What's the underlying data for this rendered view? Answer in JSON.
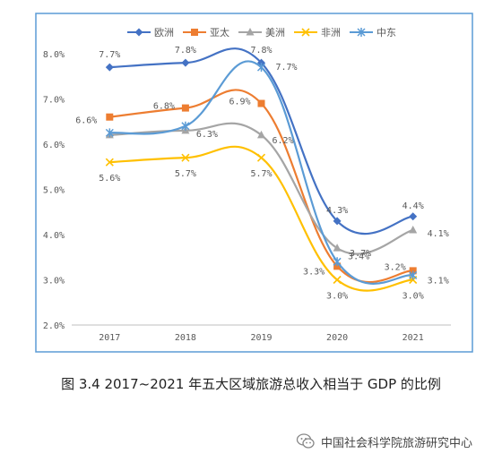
{
  "chart_data": {
    "type": "line",
    "categories": [
      "2017",
      "2018",
      "2019",
      "2020",
      "2021"
    ],
    "ylim": [
      2.0,
      8.0
    ],
    "yticks": [
      "2.0%",
      "3.0%",
      "4.0%",
      "5.0%",
      "6.0%",
      "7.0%",
      "8.0%"
    ],
    "grid": false,
    "legend_position": "top",
    "series": [
      {
        "name": "欧洲",
        "color": "#4472C4",
        "marker": "diamond",
        "values": [
          7.7,
          7.8,
          7.8,
          4.3,
          4.4
        ],
        "labels": [
          "7.7%",
          "7.8%",
          "7.8%",
          "4.3%",
          "4.4%"
        ]
      },
      {
        "name": "亚太",
        "color": "#ED7D31",
        "marker": "square",
        "values": [
          6.6,
          6.8,
          6.9,
          3.3,
          3.2
        ],
        "labels": [
          "6.6%",
          "6.8%",
          "6.9%",
          "3.3%",
          "3.2%"
        ]
      },
      {
        "name": "美洲",
        "color": "#A5A5A5",
        "marker": "triangle",
        "values": [
          6.2,
          6.3,
          6.2,
          3.7,
          4.1
        ],
        "labels": [
          "",
          "6.3%",
          "6.2%",
          "3.7%",
          "4.1%"
        ]
      },
      {
        "name": "非洲",
        "color": "#FFC000",
        "marker": "x",
        "values": [
          5.6,
          5.7,
          5.7,
          3.0,
          3.0
        ],
        "labels": [
          "5.6%",
          "5.7%",
          "5.7%",
          "3.0%",
          "3.0%"
        ]
      },
      {
        "name": "中东",
        "color": "#5B9BD5",
        "marker": "star",
        "values": [
          6.25,
          6.4,
          7.7,
          3.4,
          3.1
        ],
        "labels": [
          "",
          "",
          "7.7%",
          "3.4%",
          "3.1%"
        ]
      }
    ]
  },
  "caption": "图 3.4   2017~2021 年五大区域旅游总收入相当于 GDP 的比例",
  "footer": {
    "text": "中国社会科学院旅游研究中心",
    "icon": "wechat-icon"
  }
}
